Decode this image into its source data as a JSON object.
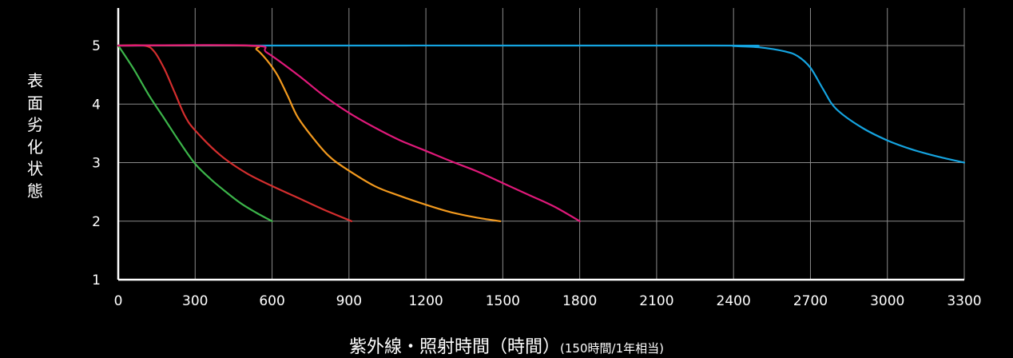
{
  "chart_data": {
    "type": "line",
    "ylabel_chars": [
      "表",
      "面",
      "劣",
      "化",
      "状",
      "態"
    ],
    "xlabel_main": "紫外線・照射時間（時間）",
    "xlabel_sub": "(150時間/1年相当)",
    "xlim": [
      0,
      3300
    ],
    "ylim": [
      1,
      5.4
    ],
    "x_ticks": [
      0,
      300,
      600,
      900,
      1200,
      1500,
      1800,
      2100,
      2400,
      2700,
      3000,
      3300
    ],
    "y_ticks": [
      1,
      2,
      3,
      4,
      5
    ],
    "grid": true,
    "series": [
      {
        "color": "#3cb54a",
        "points": [
          [
            0,
            5
          ],
          [
            60,
            4.6
          ],
          [
            120,
            4.15
          ],
          [
            180,
            3.75
          ],
          [
            240,
            3.35
          ],
          [
            300,
            2.98
          ],
          [
            360,
            2.72
          ],
          [
            420,
            2.5
          ],
          [
            480,
            2.3
          ],
          [
            540,
            2.14
          ],
          [
            600,
            2
          ]
        ]
      },
      {
        "color": "#d42e2e",
        "points": [
          [
            0,
            5
          ],
          [
            100,
            5
          ],
          [
            140,
            4.9
          ],
          [
            180,
            4.6
          ],
          [
            220,
            4.2
          ],
          [
            260,
            3.8
          ],
          [
            300,
            3.55
          ],
          [
            400,
            3.12
          ],
          [
            500,
            2.82
          ],
          [
            600,
            2.6
          ],
          [
            700,
            2.4
          ],
          [
            800,
            2.2
          ],
          [
            910,
            2
          ]
        ]
      },
      {
        "color": "#f39a1e",
        "points": [
          [
            0,
            5
          ],
          [
            500,
            5
          ],
          [
            540,
            4.93
          ],
          [
            580,
            4.75
          ],
          [
            620,
            4.5
          ],
          [
            660,
            4.15
          ],
          [
            700,
            3.78
          ],
          [
            760,
            3.42
          ],
          [
            820,
            3.12
          ],
          [
            880,
            2.92
          ],
          [
            1000,
            2.6
          ],
          [
            1100,
            2.43
          ],
          [
            1200,
            2.28
          ],
          [
            1300,
            2.15
          ],
          [
            1400,
            2.06
          ],
          [
            1490,
            2
          ]
        ]
      },
      {
        "color": "#e0197a",
        "points": [
          [
            0,
            5
          ],
          [
            520,
            5
          ],
          [
            580,
            4.88
          ],
          [
            700,
            4.5
          ],
          [
            800,
            4.15
          ],
          [
            900,
            3.85
          ],
          [
            1000,
            3.6
          ],
          [
            1100,
            3.38
          ],
          [
            1200,
            3.2
          ],
          [
            1300,
            3.02
          ],
          [
            1400,
            2.85
          ],
          [
            1500,
            2.65
          ],
          [
            1600,
            2.45
          ],
          [
            1700,
            2.25
          ],
          [
            1800,
            2
          ]
        ]
      },
      {
        "color": "#15a4e0",
        "points": [
          [
            0,
            5
          ],
          [
            2300,
            5
          ],
          [
            2400,
            4.99
          ],
          [
            2500,
            4.97
          ],
          [
            2600,
            4.9
          ],
          [
            2650,
            4.82
          ],
          [
            2700,
            4.62
          ],
          [
            2750,
            4.25
          ],
          [
            2800,
            3.92
          ],
          [
            2900,
            3.6
          ],
          [
            3000,
            3.38
          ],
          [
            3100,
            3.22
          ],
          [
            3200,
            3.1
          ],
          [
            3300,
            3
          ]
        ]
      }
    ]
  }
}
